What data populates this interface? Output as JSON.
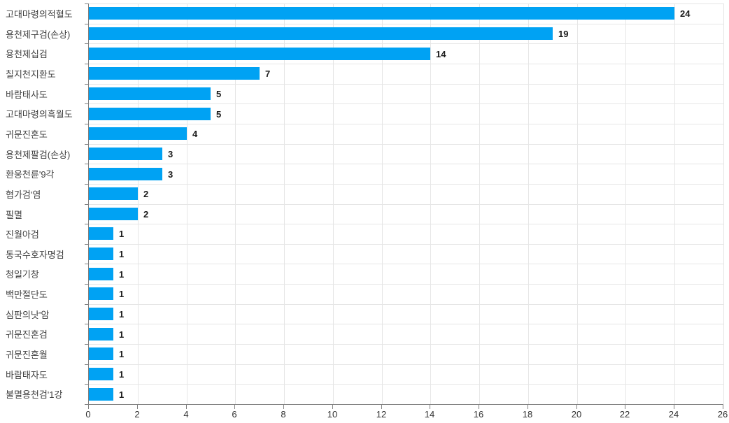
{
  "chart_data": {
    "type": "bar",
    "orientation": "horizontal",
    "title": "",
    "xlabel": "",
    "ylabel": "",
    "categories": [
      "고대마령의적혈도",
      "용천제구검(손상)",
      "용천제십검",
      "칠지천지환도",
      "바람태사도",
      "고대마령의흑월도",
      "귀문진혼도",
      "용천제팔검(손상)",
      "환웅천륜'9각",
      "협가검'염",
      "필멸",
      "진월아검",
      "동국수호자명검",
      "청일기창",
      "백만절단도",
      "심판의낫'암",
      "귀문진혼검",
      "귀문진혼월",
      "바람태자도",
      "불멸용천검'1강"
    ],
    "values": [
      24,
      19,
      14,
      7,
      5,
      5,
      4,
      3,
      3,
      2,
      2,
      1,
      1,
      1,
      1,
      1,
      1,
      1,
      1,
      1
    ],
    "value_labels_shown": true,
    "xlim": [
      0,
      26
    ],
    "x_ticks": [
      0,
      2,
      4,
      6,
      8,
      10,
      12,
      14,
      16,
      18,
      20,
      22,
      24,
      26
    ],
    "grid": true,
    "legend": null
  },
  "colors": {
    "bar": "#00a2f3",
    "grid": "#e6e6e6",
    "axis": "#808080",
    "category_label": "#404040",
    "value_label": "#1a1a1a",
    "tick_label": "#333333",
    "background": "#ffffff"
  }
}
